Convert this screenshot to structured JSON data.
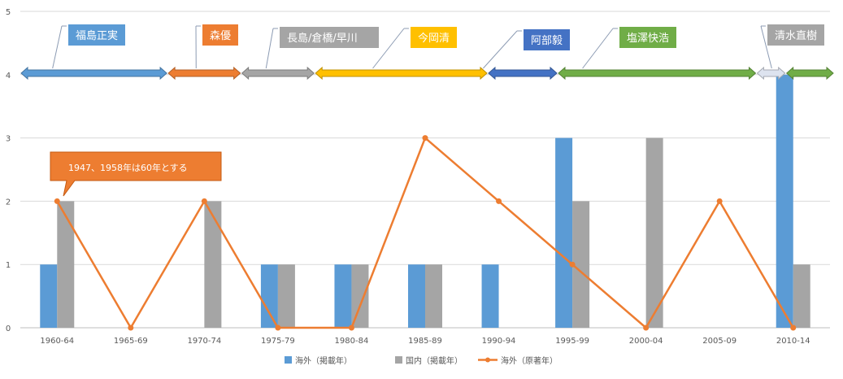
{
  "chart_data": {
    "type": "bar",
    "categories": [
      "1960-64",
      "1965-69",
      "1970-74",
      "1975-79",
      "1980-84",
      "1985-89",
      "1990-94",
      "1995-99",
      "2000-04",
      "2005-09",
      "2010-14"
    ],
    "ylim": [
      0,
      5
    ],
    "yticks": [
      0,
      1,
      2,
      3,
      4,
      5
    ],
    "grid": true,
    "legend_position": "bottom",
    "series": [
      {
        "name": "海外（掲載年）",
        "kind": "bar",
        "color": "#5B9BD5",
        "values": [
          1,
          0,
          0,
          1,
          1,
          1,
          1,
          3,
          0,
          0,
          4
        ]
      },
      {
        "name": "国内（掲載年）",
        "kind": "bar",
        "color": "#A5A5A5",
        "values": [
          2,
          0,
          2,
          1,
          1,
          1,
          0,
          2,
          3,
          0,
          1
        ]
      },
      {
        "name": "海外（原著年）",
        "kind": "line",
        "color": "#ED7D31",
        "values": [
          2,
          0,
          2,
          0,
          0,
          3,
          2,
          1,
          0,
          2,
          0
        ]
      }
    ],
    "annotation": "1947、1958年は60年とする",
    "eras": [
      {
        "name": "福島正実",
        "color": "#5B9BD5",
        "start": 0.0,
        "end": 2.0
      },
      {
        "name": "森優",
        "color": "#ED7D31",
        "start": 2.0,
        "end": 3.0
      },
      {
        "name": "長島/倉橋/早川",
        "color": "#A5A5A5",
        "start": 3.0,
        "end": 4.0
      },
      {
        "name": "今岡清",
        "color": "#FFC000",
        "start": 4.0,
        "end": 6.35
      },
      {
        "name": "阿部毅",
        "color": "#4472C4",
        "start": 6.35,
        "end": 7.3
      },
      {
        "name": "塩澤快浩",
        "color": "#70AD47",
        "start": 7.3,
        "end": 10.0
      },
      {
        "name": "清水直樹",
        "color": "#A5A5A5",
        "start": 10.0,
        "end": 10.4
      }
    ],
    "eras_tail": {
      "color": "#70AD47",
      "start": 10.4,
      "end": 11.0
    }
  }
}
